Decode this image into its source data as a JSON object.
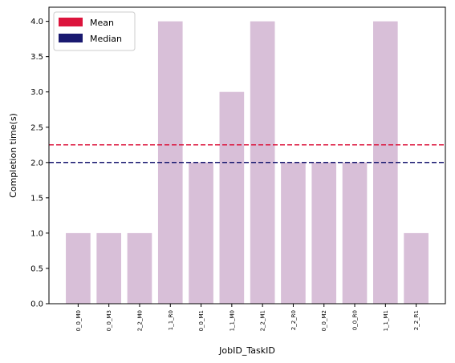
{
  "chart_data": {
    "type": "bar",
    "categories": [
      "0_0_M0",
      "0_0_M3",
      "2_2_M0",
      "1_1_R0",
      "0_0_M1",
      "1_1_M0",
      "2_2_M1",
      "2_2_R0",
      "0_0_M2",
      "0_0_R0",
      "1_1_M1",
      "2_2_R1"
    ],
    "values": [
      1,
      1,
      1,
      4,
      2,
      3,
      4,
      2,
      2,
      2,
      4,
      1
    ],
    "xlabel": "JobID_TaskID",
    "ylabel": "Completion time(s)",
    "ylim": [
      0,
      4.2
    ],
    "yticks": [
      "0.0",
      "0.5",
      "1.0",
      "1.5",
      "2.0",
      "2.5",
      "3.0",
      "3.5",
      "4.0"
    ],
    "bar_color": "#d8bfd8",
    "reference_lines": [
      {
        "name": "Mean",
        "value": 2.25,
        "color": "#dc143c"
      },
      {
        "name": "Median",
        "value": 2.0,
        "color": "#191970"
      }
    ],
    "legend": {
      "placement": "top-left",
      "entries": [
        {
          "label": "Mean",
          "color": "#dc143c"
        },
        {
          "label": "Median",
          "color": "#191970"
        }
      ]
    },
    "grid": false
  }
}
